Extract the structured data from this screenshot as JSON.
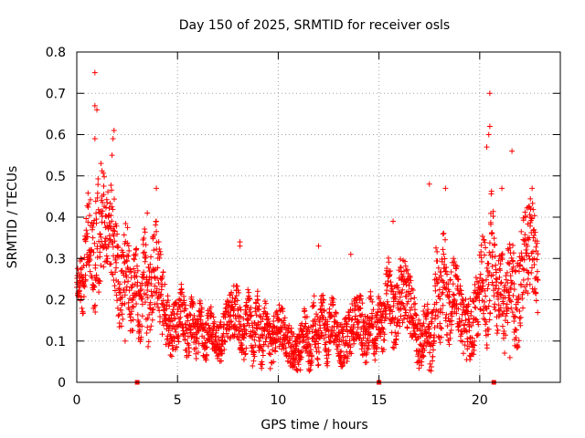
{
  "chart_data": {
    "type": "scatter",
    "title": "Day 150 of 2025, SRMTID for receiver osls",
    "xlabel": "GPS time / hours",
    "ylabel": "SRMTID / TECUs",
    "xlim": [
      0,
      24
    ],
    "ylim": [
      0,
      0.8
    ],
    "xticks": [
      0,
      5,
      10,
      15,
      20
    ],
    "yticks": [
      0,
      0.1,
      0.2,
      0.3,
      0.4,
      0.5,
      0.6,
      0.7,
      0.8
    ],
    "xtick_labels": [
      "0",
      "5",
      "10",
      "15",
      "20"
    ],
    "ytick_labels": [
      "0",
      "0.1",
      "0.2",
      "0.3",
      "0.4",
      "0.5",
      "0.6",
      "0.7",
      "0.8"
    ],
    "grid": true,
    "marker": "+",
    "color": "#ff0000",
    "baseline_markers_x": [
      3.0,
      15.0,
      20.7
    ],
    "envelope": [
      {
        "x": 0.0,
        "low": 0.17,
        "high": 0.26
      },
      {
        "x": 0.5,
        "low": 0.2,
        "high": 0.4
      },
      {
        "x": 1.0,
        "low": 0.2,
        "high": 0.55
      },
      {
        "x": 1.5,
        "low": 0.22,
        "high": 0.45
      },
      {
        "x": 2.0,
        "low": 0.18,
        "high": 0.42
      },
      {
        "x": 2.5,
        "low": 0.15,
        "high": 0.35
      },
      {
        "x": 3.0,
        "low": 0.12,
        "high": 0.3
      },
      {
        "x": 3.5,
        "low": 0.12,
        "high": 0.35
      },
      {
        "x": 4.0,
        "low": 0.12,
        "high": 0.35
      },
      {
        "x": 4.5,
        "low": 0.1,
        "high": 0.25
      },
      {
        "x": 5.0,
        "low": 0.08,
        "high": 0.22
      },
      {
        "x": 6.0,
        "low": 0.07,
        "high": 0.18
      },
      {
        "x": 7.0,
        "low": 0.06,
        "high": 0.17
      },
      {
        "x": 8.0,
        "low": 0.07,
        "high": 0.22
      },
      {
        "x": 9.0,
        "low": 0.06,
        "high": 0.2
      },
      {
        "x": 10.0,
        "low": 0.05,
        "high": 0.17
      },
      {
        "x": 11.0,
        "low": 0.04,
        "high": 0.14
      },
      {
        "x": 12.0,
        "low": 0.06,
        "high": 0.2
      },
      {
        "x": 13.0,
        "low": 0.06,
        "high": 0.18
      },
      {
        "x": 14.0,
        "low": 0.06,
        "high": 0.2
      },
      {
        "x": 15.0,
        "low": 0.08,
        "high": 0.2
      },
      {
        "x": 15.5,
        "low": 0.12,
        "high": 0.28
      },
      {
        "x": 16.0,
        "low": 0.1,
        "high": 0.28
      },
      {
        "x": 16.5,
        "low": 0.08,
        "high": 0.25
      },
      {
        "x": 17.0,
        "low": 0.06,
        "high": 0.2
      },
      {
        "x": 17.5,
        "low": 0.04,
        "high": 0.18
      },
      {
        "x": 18.0,
        "low": 0.12,
        "high": 0.35
      },
      {
        "x": 18.5,
        "low": 0.12,
        "high": 0.3
      },
      {
        "x": 19.0,
        "low": 0.1,
        "high": 0.25
      },
      {
        "x": 19.5,
        "low": 0.08,
        "high": 0.25
      },
      {
        "x": 20.0,
        "low": 0.08,
        "high": 0.28
      },
      {
        "x": 20.5,
        "low": 0.15,
        "high": 0.45
      },
      {
        "x": 21.0,
        "low": 0.1,
        "high": 0.3
      },
      {
        "x": 21.5,
        "low": 0.12,
        "high": 0.35
      },
      {
        "x": 22.0,
        "low": 0.12,
        "high": 0.38
      },
      {
        "x": 22.5,
        "low": 0.15,
        "high": 0.4
      },
      {
        "x": 22.9,
        "low": 0.15,
        "high": 0.38
      }
    ],
    "notable_points": [
      {
        "x": 0.9,
        "y": 0.75
      },
      {
        "x": 0.9,
        "y": 0.67
      },
      {
        "x": 1.0,
        "y": 0.66
      },
      {
        "x": 0.9,
        "y": 0.59
      },
      {
        "x": 1.85,
        "y": 0.61
      },
      {
        "x": 1.8,
        "y": 0.59
      },
      {
        "x": 1.75,
        "y": 0.55
      },
      {
        "x": 1.2,
        "y": 0.53
      },
      {
        "x": 3.95,
        "y": 0.47
      },
      {
        "x": 3.5,
        "y": 0.41
      },
      {
        "x": 8.1,
        "y": 0.34
      },
      {
        "x": 8.1,
        "y": 0.33
      },
      {
        "x": 12.0,
        "y": 0.33
      },
      {
        "x": 13.6,
        "y": 0.31
      },
      {
        "x": 15.7,
        "y": 0.39
      },
      {
        "x": 17.5,
        "y": 0.48
      },
      {
        "x": 18.3,
        "y": 0.47
      },
      {
        "x": 20.5,
        "y": 0.7
      },
      {
        "x": 20.5,
        "y": 0.62
      },
      {
        "x": 20.45,
        "y": 0.6
      },
      {
        "x": 20.35,
        "y": 0.57
      },
      {
        "x": 21.6,
        "y": 0.56
      },
      {
        "x": 22.6,
        "y": 0.47
      },
      {
        "x": 21.1,
        "y": 0.47
      },
      {
        "x": 2.4,
        "y": 0.1
      },
      {
        "x": 10.9,
        "y": 0.03
      },
      {
        "x": 11.1,
        "y": 0.03
      },
      {
        "x": 17.5,
        "y": 0.03
      },
      {
        "x": 21.5,
        "y": 0.06
      }
    ]
  }
}
